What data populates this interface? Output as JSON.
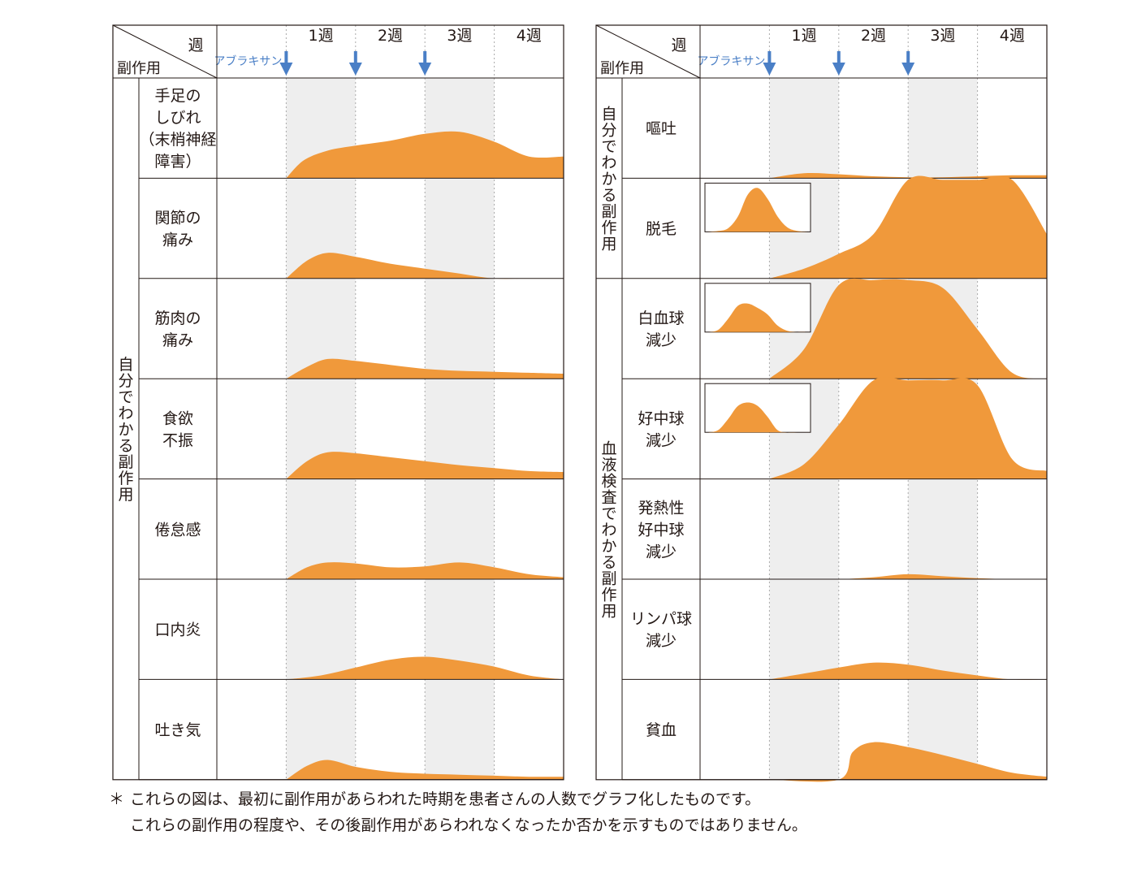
{
  "colors": {
    "fill": "#f0993b",
    "arrow": "#4a7fc6",
    "band": "#eeeeee",
    "grid": "#aaaaaa",
    "border": "#231815"
  },
  "chart_data": [
    {
      "type": "area",
      "header": {
        "week_label": "週",
        "effect_label": "副作用",
        "drug_label": "アブラキサン",
        "weeks": [
          "1週",
          "2週",
          "3週",
          "4週"
        ],
        "dose_weeks": [
          0,
          1,
          2
        ]
      },
      "x_unit": "week",
      "xlim": [
        -1,
        4
      ],
      "ylim": [
        0,
        1
      ],
      "groups": [
        {
          "label": "自分でわかる副作用",
          "rows": [
            0,
            1,
            2,
            3,
            4,
            5,
            6
          ]
        }
      ],
      "series": [
        {
          "name": "手足のしびれ（末梢神経障害）",
          "label_lines": [
            "手足の",
            "しびれ",
            "（末梢神経",
            "障害）"
          ],
          "inset": null,
          "x": [
            0,
            0.25,
            0.6,
            1,
            1.5,
            2,
            2.5,
            3,
            3.5,
            4
          ],
          "y": [
            0,
            0.18,
            0.28,
            0.33,
            0.38,
            0.45,
            0.47,
            0.37,
            0.22,
            0.22
          ]
        },
        {
          "name": "関節の痛み",
          "label_lines": [
            "関節の",
            "痛み"
          ],
          "inset": null,
          "x": [
            0,
            0.3,
            0.6,
            1,
            1.5,
            2,
            2.5,
            3,
            3.5,
            4
          ],
          "y": [
            0,
            0.18,
            0.26,
            0.22,
            0.15,
            0.1,
            0.05,
            0,
            0,
            0
          ]
        },
        {
          "name": "筋肉の痛み",
          "label_lines": [
            "筋肉の",
            "痛み"
          ],
          "inset": null,
          "x": [
            0,
            0.3,
            0.6,
            1,
            1.5,
            2,
            2.5,
            3,
            3.5,
            4
          ],
          "y": [
            0,
            0.12,
            0.2,
            0.18,
            0.14,
            0.1,
            0.08,
            0.07,
            0.06,
            0.05
          ]
        },
        {
          "name": "食欲不振",
          "label_lines": [
            "食欲",
            "不振"
          ],
          "inset": null,
          "x": [
            0,
            0.3,
            0.6,
            1,
            1.5,
            2,
            2.5,
            3,
            3.5,
            4
          ],
          "y": [
            0,
            0.18,
            0.27,
            0.26,
            0.22,
            0.18,
            0.14,
            0.11,
            0.08,
            0.07
          ]
        },
        {
          "name": "倦怠感",
          "label_lines": [
            "倦怠感"
          ],
          "inset": null,
          "x": [
            0,
            0.3,
            0.6,
            1,
            1.5,
            2,
            2.5,
            3,
            3.5,
            4
          ],
          "y": [
            0,
            0.12,
            0.17,
            0.16,
            0.12,
            0.13,
            0.17,
            0.12,
            0.05,
            0.02
          ]
        },
        {
          "name": "口内炎",
          "label_lines": [
            "口内炎"
          ],
          "inset": null,
          "x": [
            0,
            0.5,
            1,
            1.5,
            2,
            2.5,
            3,
            3.5,
            4
          ],
          "y": [
            0,
            0.04,
            0.12,
            0.2,
            0.23,
            0.19,
            0.13,
            0.04,
            0
          ]
        },
        {
          "name": "吐き気",
          "label_lines": [
            "吐き気"
          ],
          "inset": null,
          "x": [
            0,
            0.3,
            0.6,
            1,
            1.5,
            2,
            2.5,
            3,
            3.5,
            4
          ],
          "y": [
            0,
            0.14,
            0.2,
            0.13,
            0.08,
            0.06,
            0.05,
            0.04,
            0.03,
            0.03
          ]
        }
      ]
    },
    {
      "type": "area",
      "header": {
        "week_label": "週",
        "effect_label": "副作用",
        "drug_label": "アブラキサン",
        "weeks": [
          "1週",
          "2週",
          "3週",
          "4週"
        ],
        "dose_weeks": [
          0,
          1,
          2
        ]
      },
      "x_unit": "week",
      "xlim": [
        -1,
        4
      ],
      "ylim": [
        0,
        1
      ],
      "groups": [
        {
          "label": "自分でわかる副作用",
          "rows": [
            0,
            1
          ]
        },
        {
          "label": "血液検査でわかる副作用",
          "rows": [
            2,
            3,
            4,
            5,
            6
          ]
        }
      ],
      "series": [
        {
          "name": "嘔吐",
          "label_lines": [
            "嘔吐"
          ],
          "inset": null,
          "x": [
            0,
            0.5,
            1,
            1.5,
            2,
            2.5,
            3,
            3.5,
            4
          ],
          "y": [
            0,
            0.05,
            0.04,
            0.02,
            0.01,
            0.01,
            0.02,
            0.03,
            0.03
          ]
        },
        {
          "name": "脱毛",
          "label_lines": [
            "脱毛"
          ],
          "inset": {
            "x": [
              0,
              1,
              2,
              3,
              4,
              5,
              6,
              7,
              8,
              9,
              10
            ],
            "y": [
              0,
              0.02,
              0.08,
              0.35,
              0.85,
              1,
              0.75,
              0.35,
              0.1,
              0.02,
              0
            ]
          },
          "x": [
            0,
            0.5,
            1,
            1.5,
            2,
            2.5,
            3,
            3.5,
            4
          ],
          "y": [
            0,
            0.1,
            0.25,
            0.45,
            1,
            1,
            1,
            1,
            0.45
          ]
        },
        {
          "name": "白血球減少",
          "label_lines": [
            "白血球",
            "減少"
          ],
          "inset": {
            "x": [
              0,
              1,
              2,
              3,
              4,
              5,
              6,
              7,
              8,
              9,
              10
            ],
            "y": [
              0,
              0.05,
              0.3,
              0.6,
              0.65,
              0.55,
              0.4,
              0.15,
              0.03,
              0,
              0
            ]
          },
          "x": [
            0,
            0.5,
            1,
            1.5,
            2,
            2.5,
            3,
            3.5,
            4
          ],
          "y": [
            0,
            0.3,
            0.95,
            1,
            1,
            0.92,
            0.5,
            0.06,
            0
          ]
        },
        {
          "name": "好中球減少",
          "label_lines": [
            "好中球",
            "減少"
          ],
          "inset": {
            "x": [
              0,
              1,
              2,
              3,
              4,
              5,
              6,
              7,
              8,
              9,
              10
            ],
            "y": [
              0,
              0.05,
              0.3,
              0.6,
              0.68,
              0.6,
              0.35,
              0.05,
              0,
              0,
              0
            ]
          },
          "x": [
            0,
            0.5,
            1,
            1.5,
            2,
            2.5,
            3,
            3.5,
            4
          ],
          "y": [
            0,
            0.15,
            0.55,
            1,
            1,
            1,
            0.95,
            0.2,
            0.08
          ]
        },
        {
          "name": "発熱性好中球減少",
          "label_lines": [
            "発熱性",
            "好中球",
            "減少"
          ],
          "inset": null,
          "x": [
            0,
            0.5,
            1,
            1.5,
            2,
            2.5,
            3,
            3.5,
            4
          ],
          "y": [
            0,
            0,
            0,
            0.02,
            0.05,
            0.03,
            0.01,
            0,
            0
          ]
        },
        {
          "name": "リンパ球減少",
          "label_lines": [
            "リンパ球",
            "減少"
          ],
          "inset": null,
          "x": [
            0,
            0.5,
            1,
            1.5,
            2,
            2.5,
            3,
            3.5,
            4
          ],
          "y": [
            0,
            0.06,
            0.12,
            0.17,
            0.15,
            0.09,
            0.04,
            0,
            0
          ]
        },
        {
          "name": "貧血",
          "label_lines": [
            "貧血"
          ],
          "inset": null,
          "x": [
            0,
            1,
            1.2,
            1.5,
            2,
            2.5,
            3,
            3.5,
            4
          ],
          "y": [
            0,
            0,
            0.28,
            0.38,
            0.33,
            0.25,
            0.16,
            0.07,
            0.03
          ]
        }
      ]
    }
  ],
  "footnote": {
    "mark": "＊",
    "lines": [
      "これらの図は、最初に副作用があらわれた時期を患者さんの人数でグラフ化したものです。",
      "これらの副作用の程度や、その後副作用があらわれなくなったか否かを示すものではありません。"
    ]
  }
}
